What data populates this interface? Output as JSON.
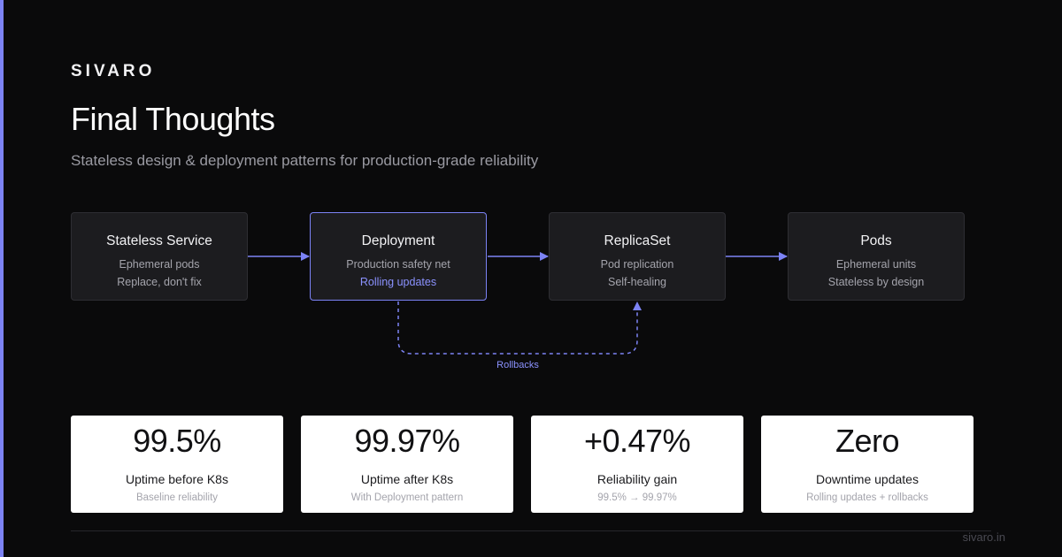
{
  "brand": "SIVARO",
  "title": "Final Thoughts",
  "subtitle": "Stateless design & deployment patterns for production-grade reliability",
  "accent_color": "#7c83f5",
  "nodes": [
    {
      "title": "Stateless Service",
      "line1": "Ephemeral pods",
      "line2": "Replace, don't fix"
    },
    {
      "title": "Deployment",
      "line1": "Production safety net",
      "line2": "Rolling updates"
    },
    {
      "title": "ReplicaSet",
      "line1": "Pod replication",
      "line2": "Self-healing"
    },
    {
      "title": "Pods",
      "line1": "Ephemeral units",
      "line2": "Stateless by design"
    }
  ],
  "rollback_label": "Rollbacks",
  "stats": [
    {
      "value": "99.5%",
      "label": "Uptime before K8s",
      "note": "Baseline reliability"
    },
    {
      "value": "99.97%",
      "label": "Uptime after K8s",
      "note": "With Deployment pattern"
    },
    {
      "value": "+0.47%",
      "label": "Reliability gain",
      "note": "99.5% → 99.97%"
    },
    {
      "value": "Zero",
      "label": "Downtime updates",
      "note": "Rolling updates + rollbacks"
    }
  ],
  "footer": "sivaro.in"
}
